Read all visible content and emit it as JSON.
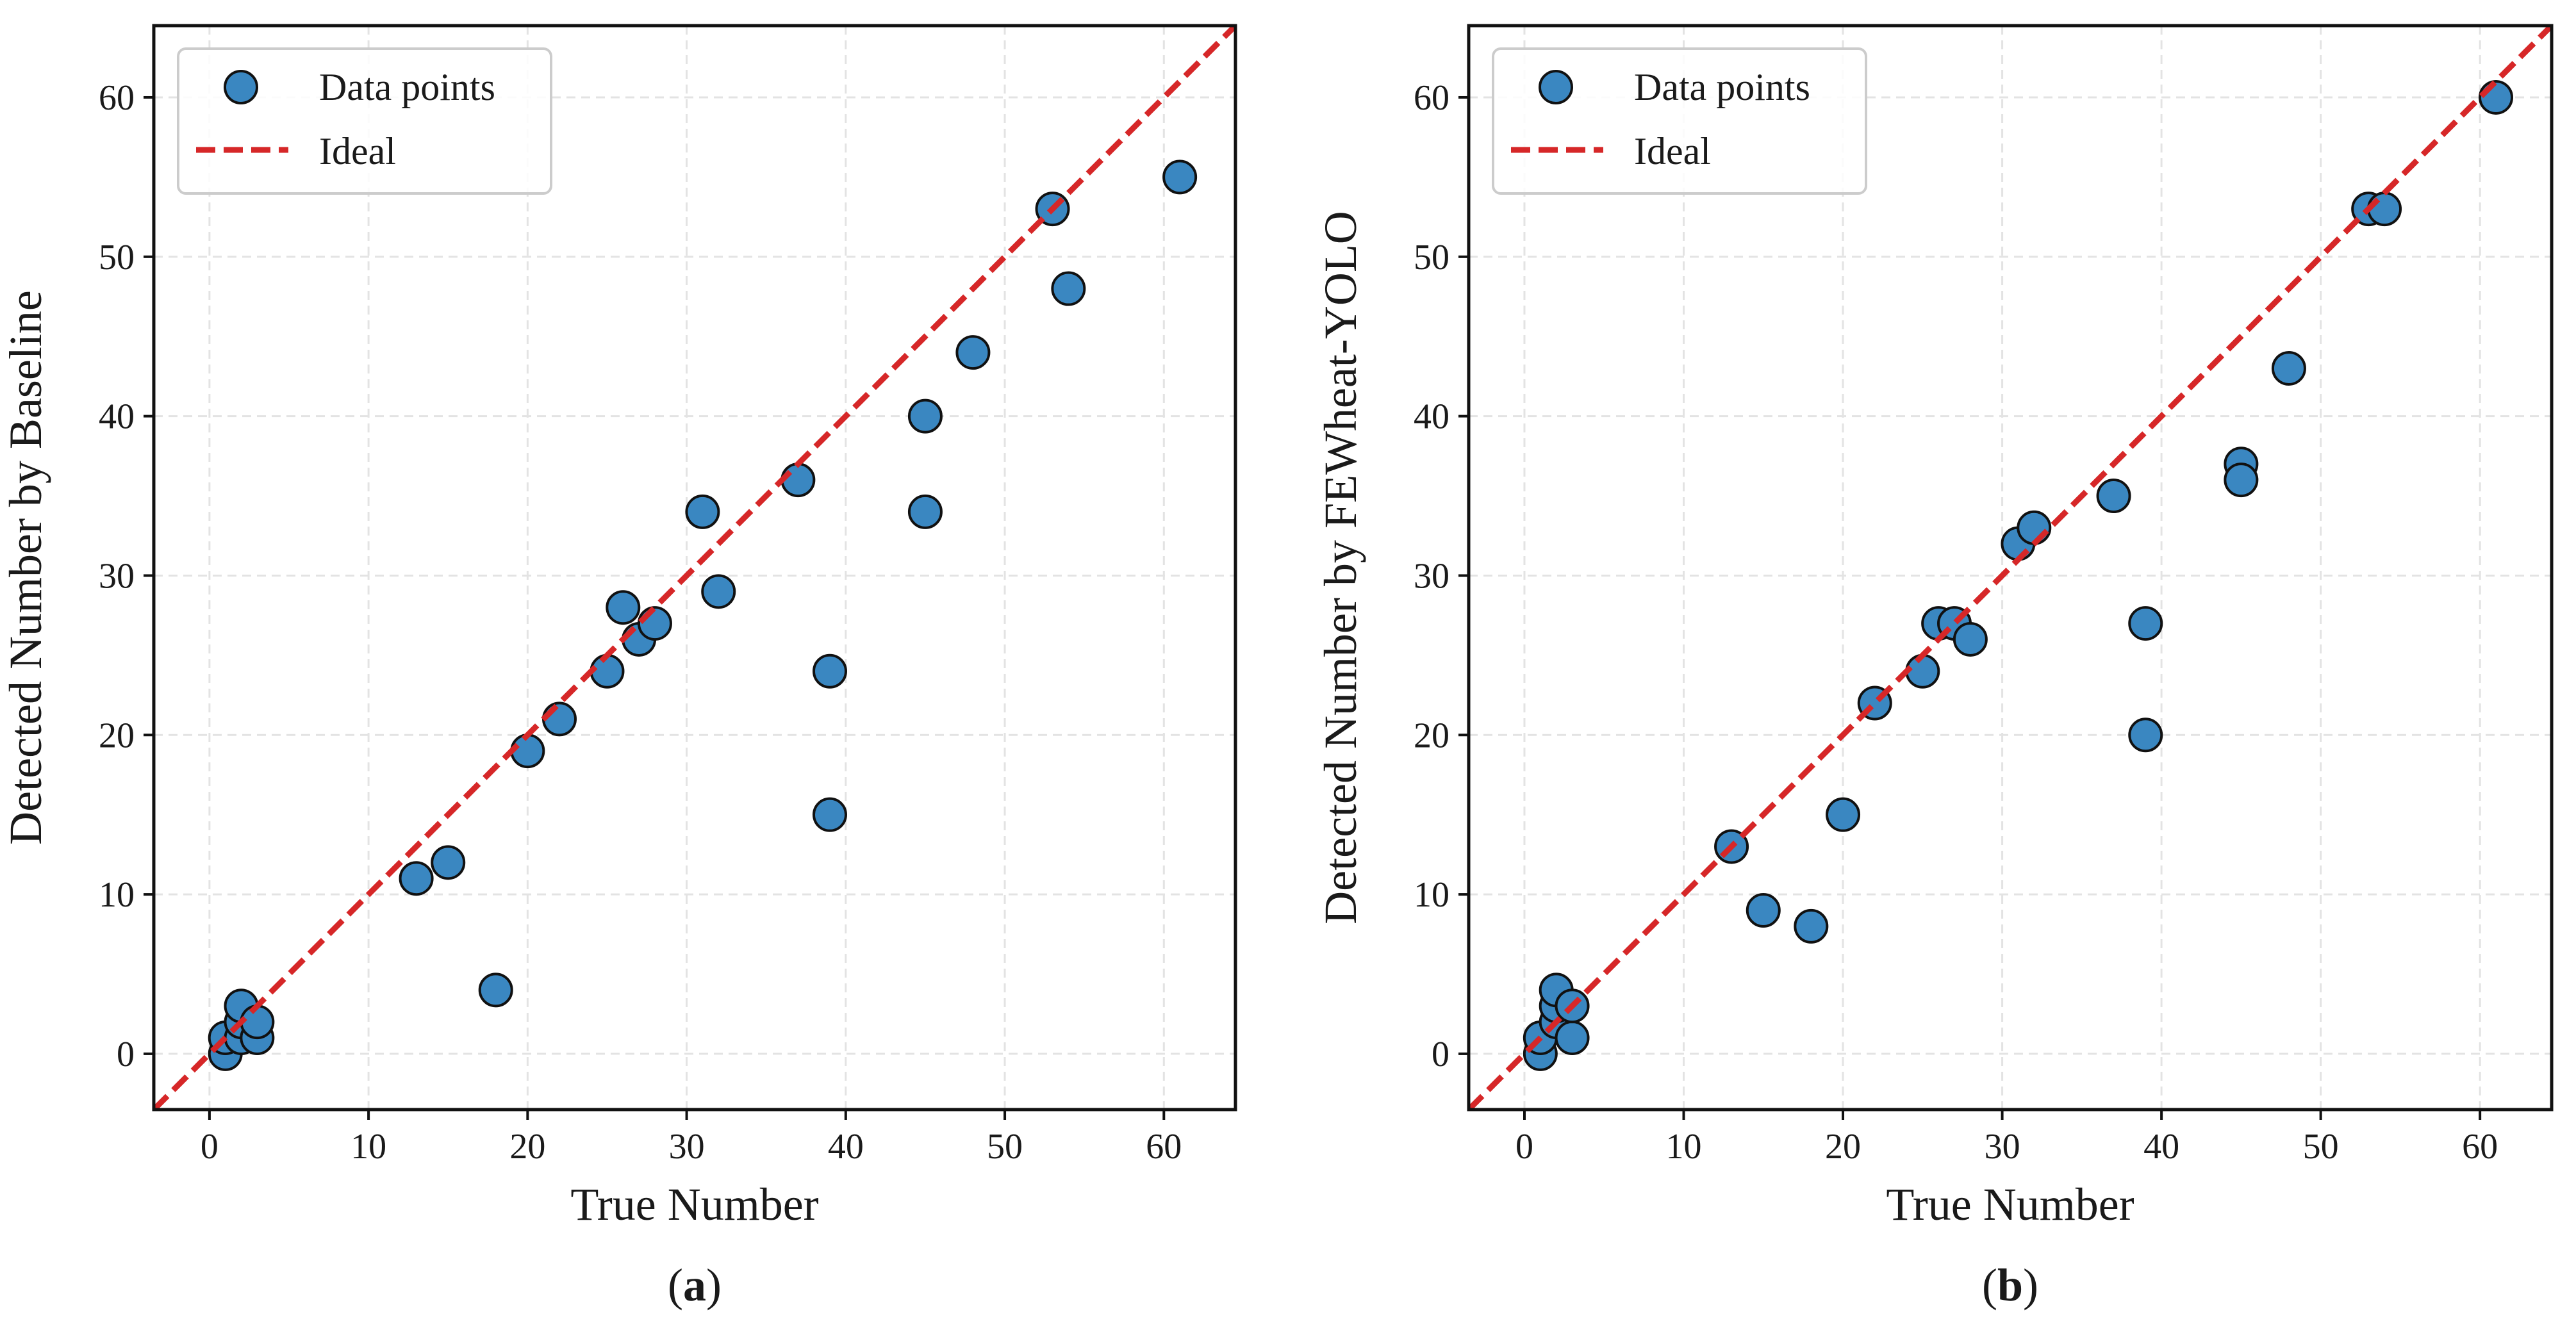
{
  "figure": {
    "background_color": "#ffffff",
    "marker_color": "#3a87c1",
    "marker_edge_color": "#111111",
    "ideal_line_color": "#d62728",
    "grid_color": "#e3e3e3"
  },
  "chart_data": [
    {
      "type": "scatter",
      "panel_label": "a",
      "title": "",
      "xlabel": "True Number",
      "ylabel": "Detected Number by Baseline",
      "xlim": [
        -3.5,
        64.5
      ],
      "ylim": [
        -3.5,
        64.5
      ],
      "xticks": [
        0,
        10,
        20,
        30,
        40,
        50,
        60
      ],
      "yticks": [
        0,
        10,
        20,
        30,
        40,
        50,
        60
      ],
      "grid": true,
      "legend_position": "top-left",
      "series": [
        {
          "name": "Data points",
          "kind": "scatter",
          "points": [
            [
              1,
              0
            ],
            [
              1,
              1
            ],
            [
              2,
              1
            ],
            [
              2,
              2
            ],
            [
              2,
              3
            ],
            [
              3,
              1
            ],
            [
              3,
              2
            ],
            [
              13,
              11
            ],
            [
              15,
              12
            ],
            [
              18,
              4
            ],
            [
              20,
              19
            ],
            [
              22,
              21
            ],
            [
              25,
              24
            ],
            [
              26,
              28
            ],
            [
              27,
              26
            ],
            [
              28,
              27
            ],
            [
              31,
              34
            ],
            [
              32,
              29
            ],
            [
              37,
              36
            ],
            [
              39,
              24
            ],
            [
              39,
              15
            ],
            [
              45,
              40
            ],
            [
              45,
              34
            ],
            [
              48,
              44
            ],
            [
              53,
              53
            ],
            [
              54,
              48
            ],
            [
              61,
              55
            ]
          ]
        },
        {
          "name": "Ideal",
          "kind": "line",
          "style": "dashed",
          "points": [
            [
              -3.5,
              -3.5
            ],
            [
              64.5,
              64.5
            ]
          ]
        }
      ]
    },
    {
      "type": "scatter",
      "panel_label": "b",
      "title": "",
      "xlabel": "True Number",
      "ylabel": "Detected Number by FEWheat-YOLO",
      "xlim": [
        -3.5,
        64.5
      ],
      "ylim": [
        -3.5,
        64.5
      ],
      "xticks": [
        0,
        10,
        20,
        30,
        40,
        50,
        60
      ],
      "yticks": [
        0,
        10,
        20,
        30,
        40,
        50,
        60
      ],
      "grid": true,
      "legend_position": "top-left",
      "series": [
        {
          "name": "Data points",
          "kind": "scatter",
          "points": [
            [
              1,
              0
            ],
            [
              1,
              1
            ],
            [
              2,
              2
            ],
            [
              2,
              3
            ],
            [
              2,
              4
            ],
            [
              3,
              1
            ],
            [
              3,
              3
            ],
            [
              13,
              13
            ],
            [
              15,
              9
            ],
            [
              18,
              8
            ],
            [
              20,
              15
            ],
            [
              22,
              22
            ],
            [
              25,
              24
            ],
            [
              26,
              27
            ],
            [
              27,
              27
            ],
            [
              28,
              26
            ],
            [
              31,
              32
            ],
            [
              32,
              33
            ],
            [
              37,
              35
            ],
            [
              39,
              27
            ],
            [
              39,
              20
            ],
            [
              45,
              37
            ],
            [
              45,
              36
            ],
            [
              48,
              43
            ],
            [
              53,
              53
            ],
            [
              54,
              53
            ],
            [
              61,
              60
            ]
          ]
        },
        {
          "name": "Ideal",
          "kind": "line",
          "style": "dashed",
          "points": [
            [
              -3.5,
              -3.5
            ],
            [
              64.5,
              64.5
            ]
          ]
        }
      ]
    }
  ]
}
